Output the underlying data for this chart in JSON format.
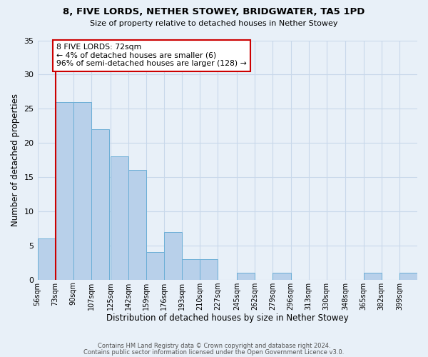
{
  "title": "8, FIVE LORDS, NETHER STOWEY, BRIDGWATER, TA5 1PD",
  "subtitle": "Size of property relative to detached houses in Nether Stowey",
  "xlabel": "Distribution of detached houses by size in Nether Stowey",
  "ylabel": "Number of detached properties",
  "bin_labels": [
    "56sqm",
    "73sqm",
    "90sqm",
    "107sqm",
    "125sqm",
    "142sqm",
    "159sqm",
    "176sqm",
    "193sqm",
    "210sqm",
    "227sqm",
    "245sqm",
    "262sqm",
    "279sqm",
    "296sqm",
    "313sqm",
    "330sqm",
    "348sqm",
    "365sqm",
    "382sqm",
    "399sqm"
  ],
  "bin_edges": [
    56,
    73,
    90,
    107,
    125,
    142,
    159,
    176,
    193,
    210,
    227,
    245,
    262,
    279,
    296,
    313,
    330,
    348,
    365,
    382,
    399
  ],
  "counts": [
    6,
    26,
    26,
    22,
    18,
    16,
    4,
    7,
    3,
    3,
    0,
    1,
    0,
    1,
    0,
    0,
    0,
    0,
    1,
    0,
    1
  ],
  "bar_color": "#b8d0ea",
  "bar_edge_color": "#6baed6",
  "grid_color": "#c8d8ea",
  "bg_color": "#e8f0f8",
  "marker_line_color": "#cc0000",
  "annotation_line1": "8 FIVE LORDS: 72sqm",
  "annotation_line2": "← 4% of detached houses are smaller (6)",
  "annotation_line3": "96% of semi-detached houses are larger (128) →",
  "ylim": [
    0,
    35
  ],
  "yticks": [
    0,
    5,
    10,
    15,
    20,
    25,
    30,
    35
  ],
  "footer1": "Contains HM Land Registry data © Crown copyright and database right 2024.",
  "footer2": "Contains public sector information licensed under the Open Government Licence v3.0."
}
